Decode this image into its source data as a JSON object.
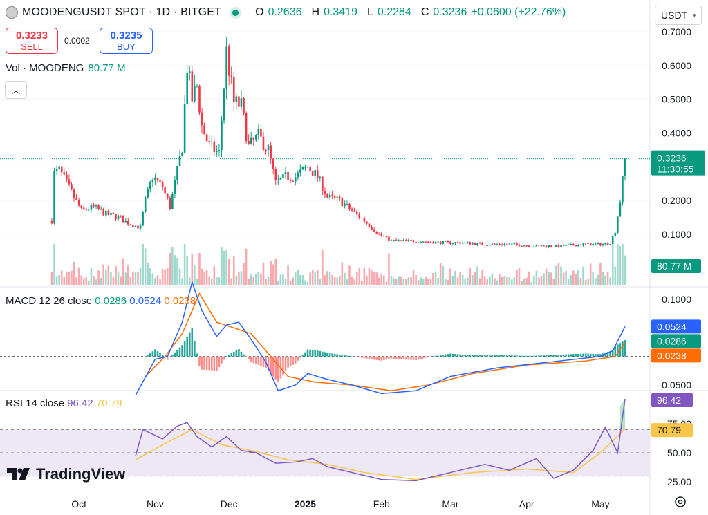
{
  "header": {
    "symbol": "MOODENGUSDT SPOT · 1D · BITGET",
    "o_label": "O",
    "o": "0.2636",
    "h_label": "H",
    "h": "0.3419",
    "l_label": "L",
    "l": "0.2284",
    "c_label": "C",
    "c": "0.3236",
    "change": "+0.0600 (+22.76%)"
  },
  "trade": {
    "sell_price": "0.3233",
    "sell_label": "SELL",
    "spread": "0.0002",
    "buy_price": "0.3235",
    "buy_label": "BUY"
  },
  "currency": "USDT",
  "volume": {
    "label": "Vol · MOODENG",
    "value": "80.77 M"
  },
  "macd_legend": {
    "label": "MACD 12 26 close",
    "hist": "0.0286",
    "macd": "0.0524",
    "signal": "0.0238"
  },
  "rsi_legend": {
    "label": "RSI 14 close",
    "rsi": "96.42",
    "ma": "70.79"
  },
  "brand": "TradingView",
  "colors": {
    "up": "#089981",
    "down": "#f23645",
    "macd": "#2962ff",
    "signal": "#ff6d00",
    "rsi": "#7e57c2",
    "rsi_ma": "#f7c548"
  },
  "chart_data": [
    {
      "type": "candlestick",
      "title": "MOODENGUSDT SPOT · 1D · BITGET",
      "x_ticks": [
        "Oct",
        "Nov",
        "Dec",
        "2025",
        "Feb",
        "Mar",
        "Apr",
        "May"
      ],
      "y_ticks": [
        "0.7000",
        "0.6000",
        "0.5000",
        "0.4000",
        "0.3000",
        "0.2000",
        "0.1000"
      ],
      "y_range": [
        0.05,
        0.7
      ],
      "last_price_label": "0.3236",
      "countdown_label": "11:30:55",
      "volume_label": "80.77 M",
      "close_path": [
        [
          "2024-09-20",
          0.14
        ],
        [
          "2024-09-21",
          0.28
        ],
        [
          "2024-09-23",
          0.29
        ],
        [
          "2024-09-26",
          0.25
        ],
        [
          "2024-09-29",
          0.21
        ],
        [
          "2024-10-02",
          0.17
        ],
        [
          "2024-10-07",
          0.18
        ],
        [
          "2024-10-12",
          0.16
        ],
        [
          "2024-10-17",
          0.15
        ],
        [
          "2024-10-22",
          0.13
        ],
        [
          "2024-10-26",
          0.12
        ],
        [
          "2024-10-28",
          0.2
        ],
        [
          "2024-10-31",
          0.27
        ],
        [
          "2024-11-04",
          0.24
        ],
        [
          "2024-11-07",
          0.18
        ],
        [
          "2024-11-09",
          0.25
        ],
        [
          "2024-11-12",
          0.36
        ],
        [
          "2024-11-14",
          0.6
        ],
        [
          "2024-11-16",
          0.5
        ],
        [
          "2024-11-18",
          0.54
        ],
        [
          "2024-11-20",
          0.42
        ],
        [
          "2024-11-23",
          0.36
        ],
        [
          "2024-11-27",
          0.34
        ],
        [
          "2024-11-30",
          0.64
        ],
        [
          "2024-12-03",
          0.49
        ],
        [
          "2024-12-06",
          0.48
        ],
        [
          "2024-12-09",
          0.36
        ],
        [
          "2024-12-13",
          0.39
        ],
        [
          "2024-12-17",
          0.35
        ],
        [
          "2024-12-20",
          0.25
        ],
        [
          "2024-12-24",
          0.27
        ],
        [
          "2024-12-28",
          0.27
        ],
        [
          "2025-01-02",
          0.3
        ],
        [
          "2025-01-06",
          0.27
        ],
        [
          "2025-01-10",
          0.21
        ],
        [
          "2025-01-15",
          0.2
        ],
        [
          "2025-01-20",
          0.17
        ],
        [
          "2025-01-25",
          0.14
        ],
        [
          "2025-01-31",
          0.1
        ],
        [
          "2025-02-05",
          0.08
        ],
        [
          "2025-02-15",
          0.08
        ],
        [
          "2025-02-25",
          0.075
        ],
        [
          "2025-03-05",
          0.075
        ],
        [
          "2025-03-15",
          0.07
        ],
        [
          "2025-03-25",
          0.07
        ],
        [
          "2025-04-05",
          0.065
        ],
        [
          "2025-04-15",
          0.065
        ],
        [
          "2025-04-25",
          0.07
        ],
        [
          "2025-05-02",
          0.07
        ],
        [
          "2025-05-05",
          0.075
        ],
        [
          "2025-05-07",
          0.11
        ],
        [
          "2025-05-09",
          0.2
        ],
        [
          "2025-05-10",
          0.26
        ],
        [
          "2025-05-11",
          0.32
        ]
      ]
    },
    {
      "type": "line",
      "title": "MACD 12 26 close",
      "y_ticks": [
        "0.1000",
        "-0.0500"
      ],
      "series": [
        {
          "name": "MACD",
          "points": [
            [
              "2024-10-24",
              -0.068
            ],
            [
              "2024-11-01",
              -0.005
            ],
            [
              "2024-11-06",
              0.0
            ],
            [
              "2024-11-12",
              0.06
            ],
            [
              "2024-11-16",
              0.13
            ],
            [
              "2024-11-20",
              0.08
            ],
            [
              "2024-11-26",
              0.035
            ],
            [
              "2024-11-30",
              0.055
            ],
            [
              "2024-12-05",
              0.06
            ],
            [
              "2024-12-10",
              0.03
            ],
            [
              "2024-12-16",
              -0.01
            ],
            [
              "2024-12-21",
              -0.06
            ],
            [
              "2024-12-28",
              -0.05
            ],
            [
              "2025-01-02",
              -0.03
            ],
            [
              "2025-01-10",
              -0.04
            ],
            [
              "2025-01-20",
              -0.05
            ],
            [
              "2025-02-01",
              -0.065
            ],
            [
              "2025-02-15",
              -0.06
            ],
            [
              "2025-03-01",
              -0.035
            ],
            [
              "2025-03-20",
              -0.02
            ],
            [
              "2025-04-10",
              -0.01
            ],
            [
              "2025-05-01",
              0.0
            ],
            [
              "2025-05-06",
              0.01
            ],
            [
              "2025-05-11",
              0.0524
            ]
          ]
        },
        {
          "name": "Signal",
          "points": [
            [
              "2024-10-28",
              -0.035
            ],
            [
              "2024-11-05",
              0.0
            ],
            [
              "2024-11-12",
              0.04
            ],
            [
              "2024-11-19",
              0.11
            ],
            [
              "2024-11-26",
              0.06
            ],
            [
              "2024-12-03",
              0.05
            ],
            [
              "2024-12-10",
              0.04
            ],
            [
              "2024-12-18",
              0.0
            ],
            [
              "2024-12-25",
              -0.035
            ],
            [
              "2025-01-05",
              -0.045
            ],
            [
              "2025-01-20",
              -0.05
            ],
            [
              "2025-02-05",
              -0.06
            ],
            [
              "2025-02-20",
              -0.05
            ],
            [
              "2025-03-10",
              -0.03
            ],
            [
              "2025-04-01",
              -0.015
            ],
            [
              "2025-04-25",
              -0.008
            ],
            [
              "2025-05-07",
              0.0
            ],
            [
              "2025-05-11",
              0.0238
            ]
          ]
        }
      ],
      "histogram_last": 0.0286
    },
    {
      "type": "line",
      "title": "RSI 14 close",
      "y_ticks": [
        "75.00",
        "50.00",
        "25.00"
      ],
      "bands": [
        30,
        70
      ],
      "series": [
        {
          "name": "RSI",
          "points": [
            [
              "2024-10-24",
              47
            ],
            [
              "2024-10-27",
              70
            ],
            [
              "2024-11-04",
              62
            ],
            [
              "2024-11-10",
              73
            ],
            [
              "2024-11-14",
              76
            ],
            [
              "2024-11-18",
              64
            ],
            [
              "2024-11-24",
              55
            ],
            [
              "2024-11-30",
              64
            ],
            [
              "2024-12-06",
              52
            ],
            [
              "2024-12-12",
              50
            ],
            [
              "2024-12-20",
              41
            ],
            [
              "2024-12-28",
              42
            ],
            [
              "2025-01-04",
              45
            ],
            [
              "2025-01-10",
              38
            ],
            [
              "2025-01-20",
              33
            ],
            [
              "2025-02-01",
              27
            ],
            [
              "2025-02-15",
              26
            ],
            [
              "2025-03-01",
              33
            ],
            [
              "2025-03-15",
              40
            ],
            [
              "2025-03-25",
              35
            ],
            [
              "2025-04-05",
              45
            ],
            [
              "2025-04-12",
              28
            ],
            [
              "2025-04-20",
              35
            ],
            [
              "2025-04-28",
              52
            ],
            [
              "2025-05-03",
              72
            ],
            [
              "2025-05-08",
              50
            ],
            [
              "2025-05-11",
              96.42
            ]
          ]
        },
        {
          "name": "RSI MA",
          "points": [
            [
              "2024-10-24",
              44
            ],
            [
              "2024-11-05",
              58
            ],
            [
              "2024-11-16",
              70
            ],
            [
              "2024-11-28",
              57
            ],
            [
              "2024-12-10",
              52
            ],
            [
              "2024-12-25",
              44
            ],
            [
              "2025-01-10",
              40
            ],
            [
              "2025-01-25",
              33
            ],
            [
              "2025-02-15",
              27
            ],
            [
              "2025-03-10",
              33
            ],
            [
              "2025-04-01",
              36
            ],
            [
              "2025-04-20",
              33
            ],
            [
              "2025-05-01",
              50
            ],
            [
              "2025-05-11",
              70.79
            ]
          ]
        }
      ]
    }
  ]
}
